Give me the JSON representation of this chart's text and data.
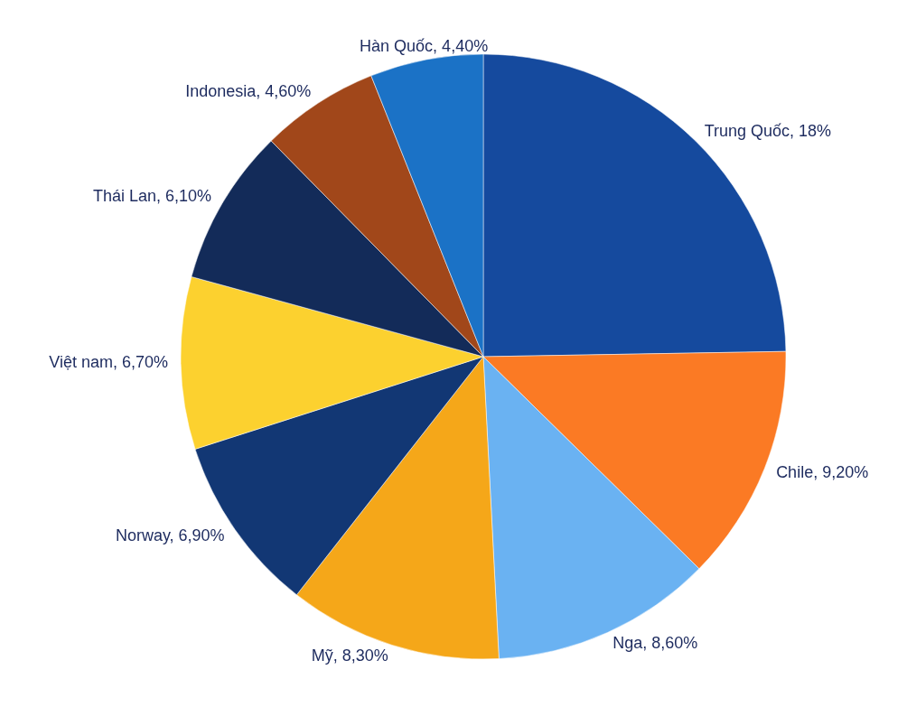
{
  "chart_data": {
    "type": "pie",
    "categories": [
      "Trung Quốc",
      "Chile",
      "Nga",
      "Mỹ",
      "Norway",
      "Việt nam",
      "Thái Lan",
      "Indonesia",
      "Hàn Quốc"
    ],
    "values": [
      18,
      9.2,
      8.6,
      8.3,
      6.9,
      6.7,
      6.1,
      4.6,
      4.4
    ],
    "value_labels": [
      "18%",
      "9,20%",
      "8,60%",
      "8,30%",
      "6,90%",
      "6,70%",
      "6,10%",
      "4,60%",
      "4,40%"
    ],
    "colors": [
      "#154a9e",
      "#fb7a24",
      "#6ab2f2",
      "#f5a719",
      "#123774",
      "#fcd12f",
      "#132b59",
      "#a1471a",
      "#1b72c6"
    ]
  }
}
